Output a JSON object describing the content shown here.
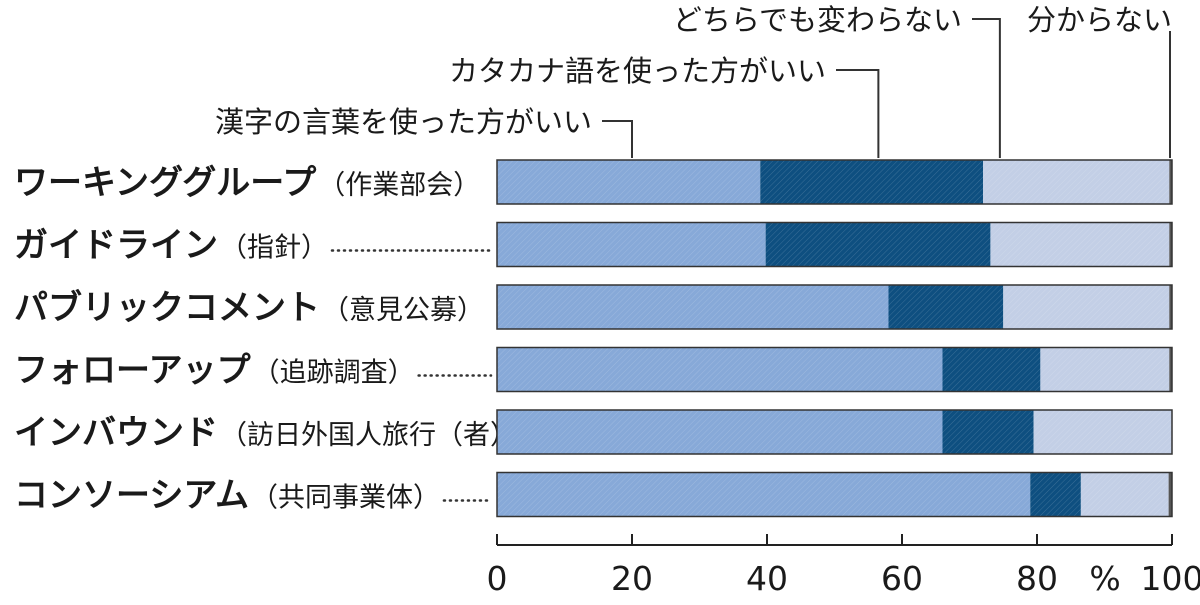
{
  "chart_data": {
    "type": "bar",
    "orientation": "horizontal",
    "stacked": true,
    "categories": [
      {
        "main": "ワーキンググループ",
        "paren": "（作業部会）"
      },
      {
        "main": "ガイドライン",
        "paren": "（指針）"
      },
      {
        "main": "パブリックコメント",
        "paren": "（意見公募）"
      },
      {
        "main": "フォローアップ",
        "paren": "（追跡調査）"
      },
      {
        "main": "インバウンド",
        "paren": "（訪日外国人旅行（者））"
      },
      {
        "main": "コンソーシアム",
        "paren": "（共同事業体）"
      }
    ],
    "series": [
      {
        "name": "漢字の言葉を使った方がいい",
        "color": "#87a9d8",
        "values": [
          39,
          39.8,
          58,
          66,
          66,
          79
        ]
      },
      {
        "name": "カタカナ語を使った方がいい",
        "color": "#0e4f80",
        "values": [
          33,
          33.3,
          17,
          14.5,
          13.5,
          7.5
        ]
      },
      {
        "name": "どちらでも変わらない",
        "color": "#c3cfe6",
        "values": [
          27.6,
          26.5,
          24.6,
          19.1,
          20.5,
          13
        ]
      },
      {
        "name": "分からない",
        "color": "#555555",
        "values": [
          0.4,
          0.4,
          0.4,
          0.4,
          0,
          0.5
        ]
      }
    ],
    "xlim": [
      0,
      100
    ],
    "x_ticks": [
      "0",
      "20",
      "40",
      "60",
      "80",
      "100"
    ],
    "x_unit": "%",
    "grid": false,
    "legend": "top-annotations"
  }
}
